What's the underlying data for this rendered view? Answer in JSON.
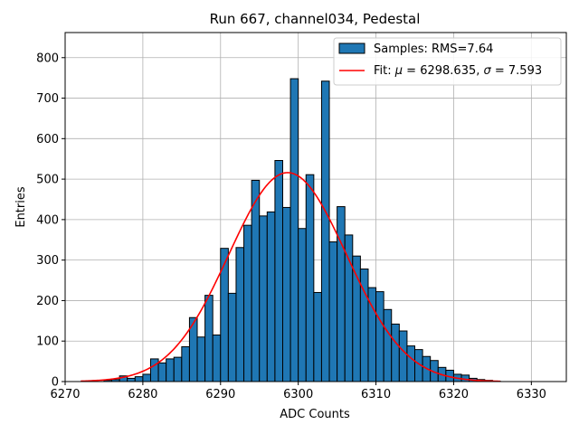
{
  "chart_data": {
    "type": "histogram",
    "title": "Run 667, channel034, Pedestal",
    "xlabel": "ADC Counts",
    "ylabel": "Entries",
    "xlim": [
      6270.0,
      6334.5
    ],
    "ylim": [
      0,
      862
    ],
    "grid": true,
    "legend_position": "upper-right",
    "x_ticks": [
      6270,
      6280,
      6290,
      6300,
      6310,
      6320,
      6330
    ],
    "y_ticks": [
      0,
      100,
      200,
      300,
      400,
      500,
      600,
      700,
      800
    ],
    "bins": {
      "edges_start": 6272,
      "bin_width": 1,
      "counts": [
        0,
        0,
        0,
        3,
        5,
        14,
        8,
        12,
        18,
        56,
        46,
        56,
        60,
        86,
        158,
        110,
        213,
        115,
        329,
        218,
        331,
        386,
        497,
        409,
        419,
        546,
        430,
        748,
        378,
        511,
        220,
        742,
        345,
        432,
        362,
        310,
        278,
        232,
        222,
        178,
        142,
        125,
        88,
        79,
        62,
        52,
        35,
        28,
        18,
        16,
        8,
        5,
        3,
        1,
        0
      ]
    },
    "series": [
      {
        "name": "Samples: RMS=7.64",
        "kind": "histogram",
        "face_color": "#1f77b4",
        "edge_color": "#000000"
      },
      {
        "name_prefix": "Fit: ",
        "name_mu_symbol": "μ",
        "name_mu_value": " = 6298.635, ",
        "name_sigma_symbol": "σ",
        "name_sigma_value": " = 7.593",
        "kind": "gaussian_fit",
        "color": "#ff0000",
        "mu": 6298.635,
        "sigma": 7.593,
        "amplitude": 516,
        "x_range": [
          6272,
          6326
        ]
      }
    ]
  }
}
